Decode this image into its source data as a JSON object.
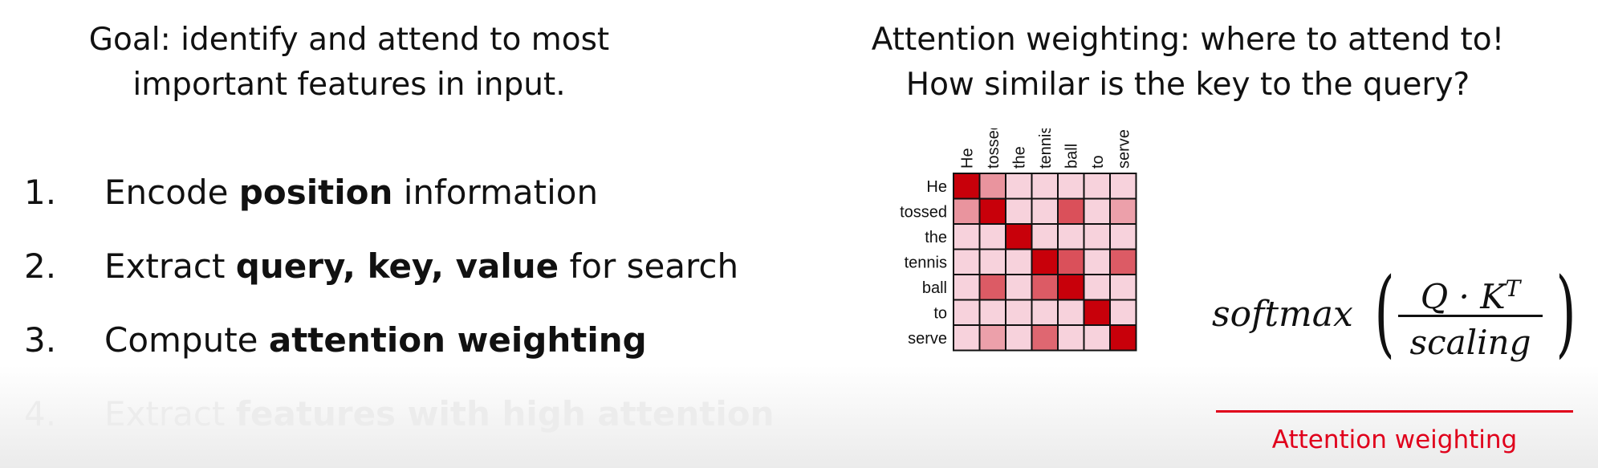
{
  "goal": {
    "line1": "Goal: identify and attend to most",
    "line2": "important features in input."
  },
  "steps": [
    {
      "num": "1.",
      "pre": "Encode ",
      "bold": "position",
      "post": " information"
    },
    {
      "num": "2.",
      "pre": "Extract ",
      "bold": "query, key, value",
      "post": " for search"
    },
    {
      "num": "3.",
      "pre": "Compute ",
      "bold": "attention weighting",
      "post": ""
    },
    {
      "num": "4.",
      "pre": "Extract ",
      "bold": "features with high attention",
      "post": ""
    }
  ],
  "right_title": {
    "line1": "Attention weighting: where to attend to!",
    "line2": "How similar is the key to the query?"
  },
  "attention_matrix": {
    "columns": [
      "He",
      "tossed",
      "the",
      "tennis",
      "ball",
      "to",
      "serve"
    ],
    "rows": [
      "He",
      "tossed",
      "the",
      "tennis",
      "ball",
      "to",
      "serve"
    ],
    "weights": [
      [
        1.0,
        0.35,
        0.08,
        0.08,
        0.08,
        0.08,
        0.08
      ],
      [
        0.35,
        1.0,
        0.08,
        0.08,
        0.65,
        0.08,
        0.3
      ],
      [
        0.08,
        0.08,
        1.0,
        0.08,
        0.08,
        0.08,
        0.08
      ],
      [
        0.08,
        0.08,
        0.08,
        1.0,
        0.65,
        0.08,
        0.6
      ],
      [
        0.08,
        0.6,
        0.08,
        0.6,
        1.0,
        0.08,
        0.08
      ],
      [
        0.08,
        0.08,
        0.08,
        0.08,
        0.08,
        1.0,
        0.08
      ],
      [
        0.08,
        0.3,
        0.08,
        0.55,
        0.08,
        0.08,
        1.0
      ]
    ],
    "colors": {
      "high": "#c8000a",
      "low": "#fbe4ee",
      "grid": "#111111"
    }
  },
  "formula": {
    "fn": "softmax",
    "numerator": "Q · K",
    "superscript": "T",
    "denominator": "scaling"
  },
  "attention_label": "Attention weighting"
}
